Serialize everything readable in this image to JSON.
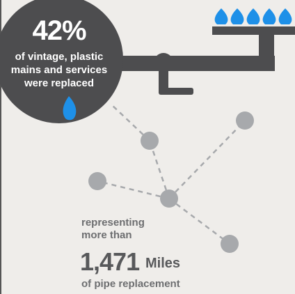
{
  "stat": {
    "percent": "42%",
    "text": "of vintage, plastic mains and services were replaced"
  },
  "detail": {
    "intro": "representing more than",
    "number": "1,471",
    "unit": "Miles",
    "outro": "of pipe replacement"
  }
}
